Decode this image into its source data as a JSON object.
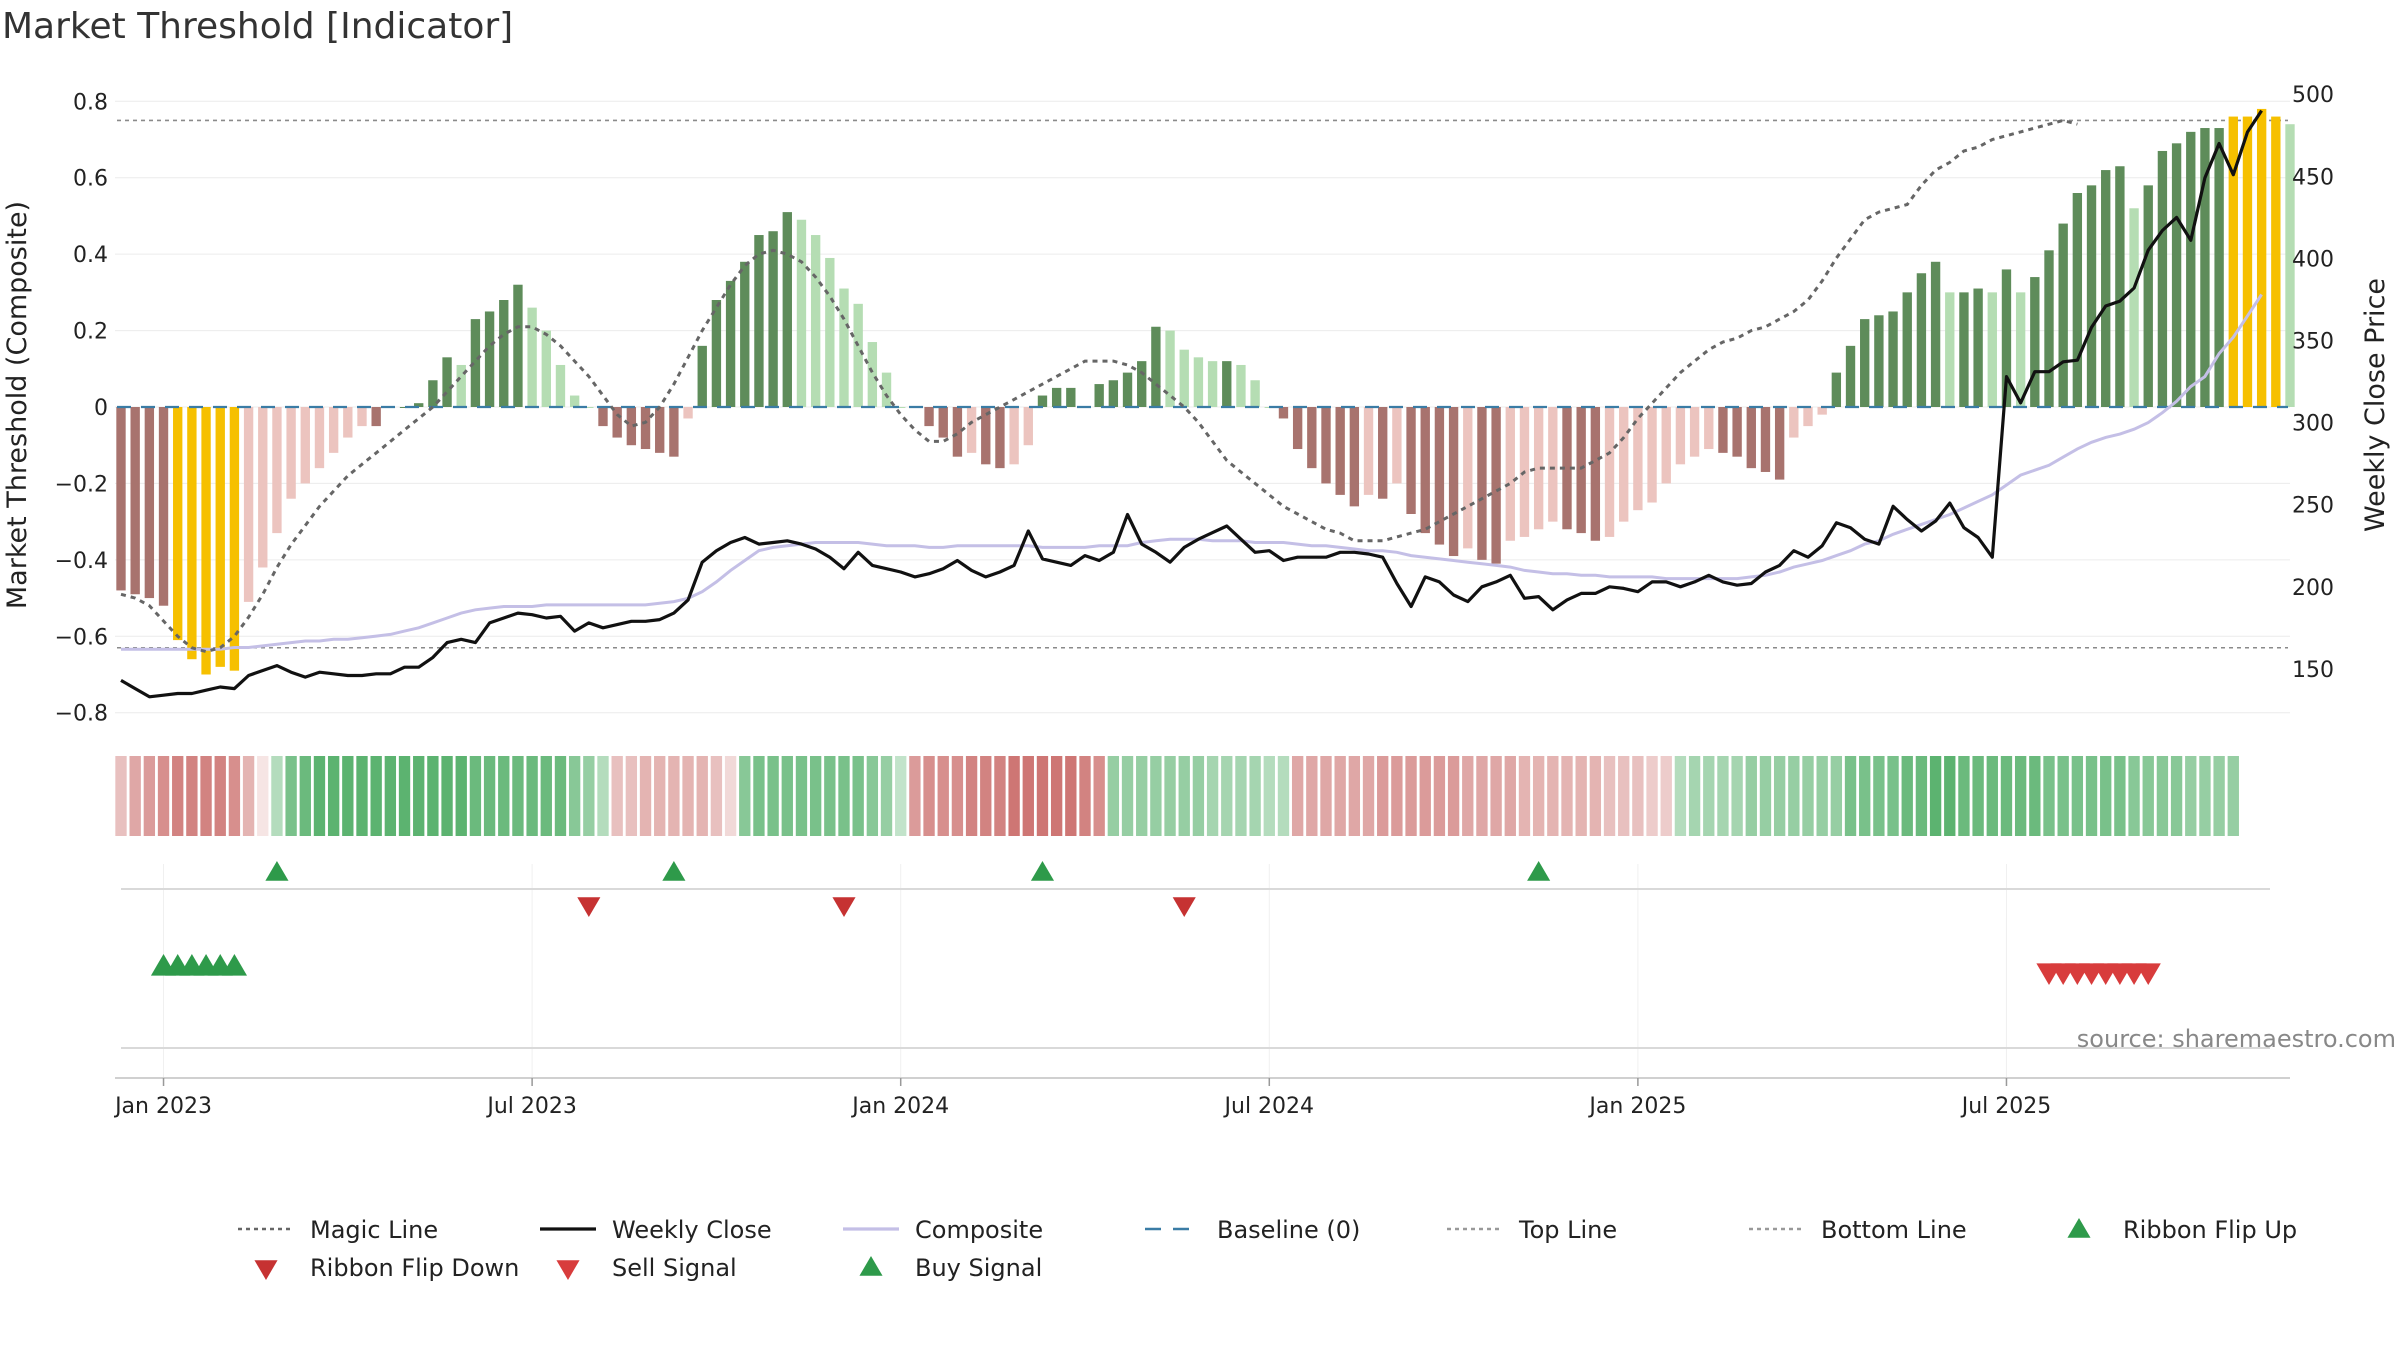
{
  "page": {
    "title": "Market Threshold [Indicator]",
    "source": "source: sharemaestro.com"
  },
  "chart_data": {
    "type": "bar",
    "title": "Market Threshold [Indicator]",
    "left_axis": {
      "label": "Market Threshold (Composite)",
      "ylim": [
        -0.84,
        0.84
      ],
      "ticks": [
        "0.8",
        "0.6",
        "0.4",
        "0.2",
        "0",
        "−0.2",
        "−0.4",
        "−0.6",
        "−0.8"
      ],
      "tick_values": [
        0.8,
        0.6,
        0.4,
        0.2,
        0,
        -0.2,
        -0.4,
        -0.6,
        -0.8
      ]
    },
    "right_axis": {
      "label": "Weekly Close Price",
      "ylim": [
        114,
        505
      ],
      "ticks": [
        "500",
        "450",
        "400",
        "350",
        "300",
        "250",
        "200",
        "150"
      ],
      "tick_values": [
        500,
        450,
        400,
        350,
        300,
        250,
        200,
        150
      ]
    },
    "x_axis": {
      "ticks": [
        "Jan 2023",
        "Jul 2023",
        "Jan 2024",
        "Jul 2024",
        "Jan 2025",
        "Jul 2025"
      ],
      "tick_weeks": [
        3,
        29,
        55,
        81,
        107,
        133
      ]
    },
    "start_week": "Dec 2022",
    "thresholds": {
      "top": 0.75,
      "bottom": -0.63,
      "baseline": 0
    },
    "composite_bars": [
      -0.48,
      -0.49,
      -0.5,
      -0.52,
      -0.61,
      -0.66,
      -0.7,
      -0.68,
      -0.69,
      -0.51,
      -0.42,
      -0.33,
      -0.24,
      -0.2,
      -0.16,
      -0.12,
      -0.08,
      -0.05,
      -0.05,
      0,
      0,
      0.01,
      0.07,
      0.13,
      0.11,
      0.23,
      0.25,
      0.28,
      0.32,
      0.26,
      0.2,
      0.11,
      0.03,
      0,
      -0.05,
      -0.08,
      -0.1,
      -0.11,
      -0.12,
      -0.13,
      -0.03,
      0.16,
      0.28,
      0.33,
      0.38,
      0.45,
      0.46,
      0.51,
      0.49,
      0.45,
      0.39,
      0.31,
      0.27,
      0.17,
      0.09,
      0,
      0,
      -0.05,
      -0.08,
      -0.13,
      -0.12,
      -0.15,
      -0.16,
      -0.15,
      -0.1,
      0.03,
      0.05,
      0.05,
      0,
      0.06,
      0.07,
      0.09,
      0.12,
      0.21,
      0.2,
      0.15,
      0.13,
      0.12,
      0.12,
      0.11,
      0.07,
      0,
      -0.03,
      -0.11,
      -0.16,
      -0.2,
      -0.23,
      -0.26,
      -0.23,
      -0.24,
      -0.2,
      -0.28,
      -0.33,
      -0.36,
      -0.39,
      -0.37,
      -0.4,
      -0.41,
      -0.35,
      -0.34,
      -0.32,
      -0.3,
      -0.32,
      -0.33,
      -0.35,
      -0.34,
      -0.3,
      -0.27,
      -0.25,
      -0.2,
      -0.15,
      -0.13,
      -0.11,
      -0.12,
      -0.13,
      -0.16,
      -0.17,
      -0.19,
      -0.08,
      -0.05,
      -0.02,
      0.09,
      0.16,
      0.23,
      0.24,
      0.25,
      0.3,
      0.35,
      0.38,
      0.3,
      0.3,
      0.31,
      0.3,
      0.36,
      0.3,
      0.34,
      0.41,
      0.48,
      0.56,
      0.58,
      0.62,
      0.63,
      0.52,
      0.58,
      0.67,
      0.69,
      0.72,
      0.73,
      0.73,
      0.76,
      0.76,
      0.78,
      0.76,
      0.74
    ],
    "magic_line": [
      -0.49,
      -0.5,
      -0.52,
      -0.56,
      -0.6,
      -0.63,
      -0.64,
      -0.63,
      -0.6,
      -0.55,
      -0.49,
      -0.42,
      -0.36,
      -0.31,
      -0.26,
      -0.22,
      -0.18,
      -0.15,
      -0.12,
      -0.09,
      -0.06,
      -0.03,
      0.0,
      0.04,
      0.08,
      0.12,
      0.16,
      0.19,
      0.21,
      0.21,
      0.19,
      0.16,
      0.12,
      0.08,
      0.03,
      -0.02,
      -0.05,
      -0.04,
      0.0,
      0.06,
      0.13,
      0.2,
      0.26,
      0.32,
      0.37,
      0.4,
      0.41,
      0.4,
      0.38,
      0.34,
      0.29,
      0.23,
      0.16,
      0.09,
      0.03,
      -0.02,
      -0.06,
      -0.09,
      -0.09,
      -0.07,
      -0.04,
      -0.02,
      0.0,
      0.02,
      0.04,
      0.06,
      0.08,
      0.1,
      0.12,
      0.12,
      0.12,
      0.11,
      0.09,
      0.06,
      0.03,
      0.0,
      -0.04,
      -0.09,
      -0.14,
      -0.17,
      -0.2,
      -0.23,
      -0.26,
      -0.28,
      -0.3,
      -0.32,
      -0.33,
      -0.35,
      -0.35,
      -0.35,
      -0.34,
      -0.33,
      -0.32,
      -0.3,
      -0.28,
      -0.26,
      -0.24,
      -0.22,
      -0.2,
      -0.17,
      -0.16,
      -0.16,
      -0.16,
      -0.16,
      -0.14,
      -0.12,
      -0.08,
      -0.03,
      0.01,
      0.05,
      0.09,
      0.12,
      0.15,
      0.17,
      0.18,
      0.2,
      0.21,
      0.23,
      0.25,
      0.28,
      0.33,
      0.39,
      0.44,
      0.49,
      0.51,
      0.52,
      0.53,
      0.58,
      0.62,
      0.64,
      0.67,
      0.68,
      0.7,
      0.71,
      0.72,
      0.73,
      0.74,
      0.75,
      0.74
    ],
    "weekly_close": [
      143,
      138,
      133,
      134,
      135,
      135,
      137,
      139,
      138,
      146,
      149,
      152,
      148,
      145,
      148,
      147,
      146,
      146,
      147,
      147,
      151,
      151,
      157,
      166,
      168,
      166,
      178,
      181,
      184,
      183,
      181,
      182,
      173,
      178,
      175,
      177,
      179,
      179,
      180,
      184,
      192,
      215,
      222,
      227,
      230,
      226,
      227,
      228,
      226,
      223,
      218,
      211,
      221,
      213,
      211,
      209,
      206,
      208,
      211,
      216,
      210,
      206,
      209,
      213,
      234,
      217,
      215,
      213,
      219,
      216,
      221,
      244,
      226,
      221,
      215,
      224,
      229,
      233,
      237,
      229,
      221,
      222,
      216,
      218,
      218,
      218,
      221,
      221,
      220,
      218,
      202,
      188,
      206,
      203,
      195,
      191,
      200,
      203,
      207,
      193,
      194,
      186,
      192,
      196,
      196,
      200,
      199,
      197,
      203,
      203,
      200,
      203,
      207,
      203,
      201,
      202,
      209,
      213,
      222,
      218,
      225,
      239,
      236,
      229,
      226,
      249,
      241,
      234,
      240,
      251,
      236,
      230,
      218,
      328,
      312,
      331,
      331,
      337,
      338,
      358,
      371,
      374,
      382,
      405,
      417,
      425,
      411,
      449,
      470,
      451,
      477,
      490
    ],
    "composite_line": [
      162,
      162,
      162,
      162,
      162,
      162,
      162,
      162,
      163,
      163,
      164,
      165,
      166,
      167,
      167,
      168,
      168,
      169,
      170,
      171,
      173,
      175,
      178,
      181,
      184,
      186,
      187,
      188,
      188,
      188,
      189,
      189,
      189,
      189,
      189,
      189,
      189,
      189,
      190,
      191,
      193,
      197,
      203,
      210,
      216,
      222,
      224,
      225,
      226,
      227,
      227,
      227,
      227,
      226,
      225,
      225,
      225,
      224,
      224,
      225,
      225,
      225,
      225,
      225,
      225,
      224,
      224,
      224,
      224,
      225,
      225,
      225,
      227,
      228,
      229,
      229,
      229,
      228,
      228,
      228,
      227,
      227,
      227,
      226,
      225,
      225,
      224,
      223,
      222,
      222,
      221,
      219,
      218,
      217,
      216,
      215,
      214,
      213,
      212,
      210,
      209,
      208,
      208,
      207,
      207,
      206,
      206,
      206,
      206,
      205,
      205,
      205,
      205,
      205,
      205,
      206,
      207,
      209,
      212,
      214,
      216,
      219,
      222,
      226,
      228,
      232,
      235,
      238,
      241,
      244,
      248,
      252,
      256,
      262,
      268,
      271,
      274,
      279,
      284,
      288,
      291,
      293,
      296,
      300,
      306,
      313,
      322,
      328,
      342,
      352,
      365,
      378
    ],
    "ribbon": [
      0.3,
      0.5,
      0.6,
      0.7,
      0.8,
      0.8,
      0.8,
      0.8,
      0.7,
      0.4,
      0.0,
      -0.3,
      -0.7,
      -0.8,
      -0.9,
      -0.9,
      -0.9,
      -0.9,
      -0.9,
      -0.9,
      -0.9,
      -0.9,
      -0.9,
      -0.9,
      -0.9,
      -0.8,
      -0.8,
      -0.8,
      -0.8,
      -0.8,
      -0.8,
      -0.8,
      -0.6,
      -0.5,
      -0.3,
      0.3,
      0.3,
      0.4,
      0.4,
      0.4,
      0.4,
      0.4,
      0.3,
      0.1,
      -0.6,
      -0.7,
      -0.7,
      -0.7,
      -0.7,
      -0.7,
      -0.7,
      -0.7,
      -0.7,
      -0.6,
      -0.5,
      -0.2,
      0.6,
      0.7,
      0.7,
      0.7,
      0.8,
      0.8,
      0.8,
      0.9,
      0.9,
      0.9,
      0.9,
      0.9,
      0.8,
      0.7,
      -0.5,
      -0.5,
      -0.5,
      -0.5,
      -0.5,
      -0.5,
      -0.5,
      -0.4,
      -0.4,
      -0.4,
      -0.4,
      -0.3,
      -0.3,
      0.5,
      0.5,
      0.5,
      0.5,
      0.5,
      0.5,
      0.6,
      0.6,
      0.6,
      0.6,
      0.6,
      0.6,
      0.5,
      0.5,
      0.5,
      0.5,
      0.4,
      0.4,
      0.4,
      0.4,
      0.4,
      0.4,
      0.3,
      0.3,
      0.3,
      0.2,
      0.2,
      -0.3,
      -0.4,
      -0.4,
      -0.4,
      -0.4,
      -0.5,
      -0.5,
      -0.5,
      -0.5,
      -0.5,
      -0.5,
      -0.5,
      -0.7,
      -0.7,
      -0.7,
      -0.7,
      -0.8,
      -0.8,
      -0.9,
      -0.9,
      -0.8,
      -0.8,
      -0.8,
      -0.8,
      -0.8,
      -0.8,
      -0.7,
      -0.7,
      -0.7,
      -0.7,
      -0.7,
      -0.7,
      -0.6,
      -0.6,
      -0.6,
      -0.6,
      -0.5,
      -0.5,
      -0.5,
      -0.5
    ],
    "ribbon_flip_up": [
      11,
      39,
      65,
      100
    ],
    "ribbon_flip_down": [
      33,
      51,
      75
    ],
    "buy_signals": [
      3,
      4,
      5,
      6,
      7,
      8
    ],
    "sell_signals": [
      136,
      137,
      138,
      139,
      140,
      141,
      142,
      143
    ],
    "colors": {
      "bar_pos_dark": "#5e8c5a",
      "bar_pos_light": "#b5ddb3",
      "bar_neg_dark": "#a8736e",
      "bar_neg_light": "#ecc4bf",
      "bar_extreme": "#f6c000",
      "magic_line": "#666666",
      "weekly_close": "#111111",
      "composite": "#c4bfe6",
      "baseline": "#3a7ca5",
      "ribbon_green": "#2e9e48",
      "ribbon_red": "#c0504d",
      "buy": "#2e9a4a",
      "sell": "#d83c3c"
    },
    "legend": [
      {
        "label": "Magic Line",
        "symbol": "dotted",
        "color": "#666666"
      },
      {
        "label": "Weekly Close",
        "symbol": "solid",
        "color": "#111111"
      },
      {
        "label": "Composite",
        "symbol": "solid",
        "color": "#c4bfe6"
      },
      {
        "label": "Baseline (0)",
        "symbol": "dashed",
        "color": "#3a7ca5"
      },
      {
        "label": "Top Line",
        "symbol": "dotted",
        "color": "#999999"
      },
      {
        "label": "Bottom Line",
        "symbol": "dotted",
        "color": "#999999"
      },
      {
        "label": "Ribbon Flip Up",
        "symbol": "tri-up",
        "color": "#2e9a4a"
      },
      {
        "label": "Ribbon Flip Down",
        "symbol": "tri-down",
        "color": "#c63232"
      },
      {
        "label": "Sell Signal",
        "symbol": "tri-down",
        "color": "#d83c3c"
      },
      {
        "label": "Buy Signal",
        "symbol": "tri-up",
        "color": "#2e9a4a"
      }
    ]
  }
}
